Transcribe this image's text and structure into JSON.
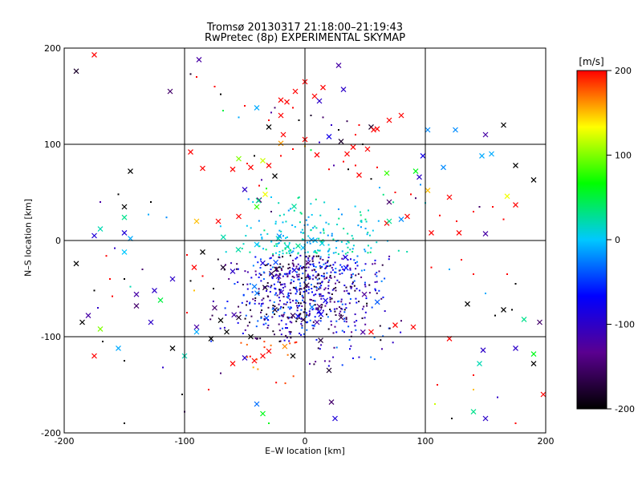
{
  "chart_data": {
    "type": "scatter",
    "title": "Tromsø 20130317 21:18:00–21:19:43",
    "subtitle": "RwPretec (8p) EXPERIMENTAL SKYMAP",
    "xlabel": "E–W location [km]",
    "ylabel": "N–S location [km]",
    "xlim": [
      -200,
      200
    ],
    "ylim": [
      -200,
      200
    ],
    "xticks": [
      -200,
      -100,
      0,
      100,
      200
    ],
    "yticks": [
      -200,
      -100,
      0,
      100,
      200
    ],
    "grid": true,
    "colorbar": {
      "unit": "[m/s]",
      "range": [
        -200,
        200
      ],
      "ticks": [
        -200,
        -100,
        0,
        100,
        200
      ],
      "colormap": [
        "#000000",
        "#5a0090",
        "#0000ff",
        "#00c8ff",
        "#00ff00",
        "#ffff00",
        "#ff0000"
      ]
    },
    "series": [
      {
        "marker": "x",
        "points": [
          [
            -190,
            176,
            -180
          ],
          [
            -175,
            193,
            200
          ],
          [
            -112,
            155,
            -150
          ],
          [
            -88,
            188,
            -120
          ],
          [
            -20,
            146,
            200
          ],
          [
            -15,
            144,
            200
          ],
          [
            -8,
            155,
            200
          ],
          [
            0,
            165,
            200
          ],
          [
            8,
            150,
            200
          ],
          [
            12,
            145,
            -100
          ],
          [
            15,
            159,
            200
          ],
          [
            32,
            157,
            -100
          ],
          [
            28,
            182,
            -120
          ],
          [
            55,
            118,
            -180
          ],
          [
            57,
            115,
            200
          ],
          [
            70,
            125,
            200
          ],
          [
            80,
            130,
            200
          ],
          [
            102,
            115,
            -20
          ],
          [
            125,
            115,
            -20
          ],
          [
            150,
            110,
            -120
          ],
          [
            165,
            120,
            -200
          ],
          [
            -40,
            138,
            -10
          ],
          [
            -20,
            130,
            200
          ],
          [
            -30,
            118,
            -200
          ],
          [
            -18,
            110,
            200
          ],
          [
            0,
            105,
            200
          ],
          [
            20,
            108,
            -80
          ],
          [
            30,
            103,
            -180
          ],
          [
            40,
            97,
            200
          ],
          [
            -95,
            92,
            200
          ],
          [
            -85,
            75,
            200
          ],
          [
            -55,
            85,
            100
          ],
          [
            -60,
            74,
            200
          ],
          [
            -45,
            76,
            200
          ],
          [
            -30,
            78,
            200
          ],
          [
            -25,
            67,
            -200
          ],
          [
            -35,
            83,
            120
          ],
          [
            -145,
            72,
            -200
          ],
          [
            -50,
            53,
            -100
          ],
          [
            -33,
            48,
            130
          ],
          [
            -38,
            42,
            -150
          ],
          [
            -20,
            101,
            160
          ],
          [
            10,
            89,
            200
          ],
          [
            35,
            90,
            200
          ],
          [
            45,
            68,
            200
          ],
          [
            68,
            70,
            80
          ],
          [
            92,
            72,
            60
          ],
          [
            98,
            88,
            -80
          ],
          [
            95,
            66,
            -100
          ],
          [
            115,
            76,
            -20
          ],
          [
            147,
            88,
            -10
          ],
          [
            155,
            90,
            -10
          ],
          [
            175,
            78,
            -200
          ],
          [
            190,
            63,
            -200
          ],
          [
            60,
            116,
            200
          ],
          [
            52,
            95,
            200
          ],
          [
            120,
            45,
            200
          ],
          [
            102,
            52,
            150
          ],
          [
            168,
            46,
            130
          ],
          [
            175,
            37,
            200
          ],
          [
            -150,
            35,
            -200
          ],
          [
            -150,
            24,
            30
          ],
          [
            -170,
            12,
            20
          ],
          [
            -150,
            8,
            -90
          ],
          [
            -175,
            5,
            -90
          ],
          [
            -145,
            2,
            -10
          ],
          [
            -90,
            20,
            150
          ],
          [
            -72,
            20,
            200
          ],
          [
            -55,
            25,
            200
          ],
          [
            -40,
            35,
            80
          ],
          [
            70,
            40,
            -150
          ],
          [
            68,
            18,
            200
          ],
          [
            80,
            22,
            -20
          ],
          [
            85,
            25,
            200
          ],
          [
            70,
            20,
            30
          ],
          [
            105,
            8,
            200
          ],
          [
            128,
            8,
            200
          ],
          [
            150,
            7,
            -120
          ],
          [
            -190,
            -24,
            -200
          ],
          [
            -150,
            -12,
            0
          ],
          [
            -110,
            -40,
            -100
          ],
          [
            -92,
            -28,
            200
          ],
          [
            -85,
            -12,
            -200
          ],
          [
            -68,
            -28,
            -180
          ],
          [
            -60,
            -32,
            -100
          ],
          [
            -140,
            -56,
            -120
          ],
          [
            -125,
            -52,
            -100
          ],
          [
            -120,
            -62,
            50
          ],
          [
            -140,
            -68,
            -150
          ],
          [
            -128,
            -85,
            -100
          ],
          [
            -180,
            -78,
            -120
          ],
          [
            -170,
            -92,
            100
          ],
          [
            -155,
            -112,
            -10
          ],
          [
            -175,
            -120,
            200
          ],
          [
            -110,
            -112,
            -200
          ],
          [
            -100,
            -120,
            20
          ],
          [
            -90,
            -90,
            -120
          ],
          [
            -75,
            -70,
            -150
          ],
          [
            -70,
            -83,
            -200
          ],
          [
            -65,
            -95,
            -200
          ],
          [
            -78,
            -102,
            -200
          ],
          [
            -55,
            -80,
            -180
          ],
          [
            -45,
            -100,
            -200
          ],
          [
            -30,
            -115,
            200
          ],
          [
            -35,
            -120,
            200
          ],
          [
            -42,
            -125,
            200
          ],
          [
            -25,
            -72,
            -180
          ],
          [
            -10,
            -78,
            -160
          ],
          [
            10,
            -85,
            -120
          ],
          [
            30,
            -80,
            -160
          ],
          [
            55,
            -95,
            200
          ],
          [
            75,
            -88,
            200
          ],
          [
            90,
            -90,
            200
          ],
          [
            135,
            -66,
            -200
          ],
          [
            165,
            -72,
            -200
          ],
          [
            182,
            -82,
            30
          ],
          [
            195,
            -85,
            -150
          ],
          [
            175,
            -112,
            -100
          ],
          [
            190,
            -118,
            60
          ],
          [
            190,
            -128,
            -200
          ],
          [
            198,
            -160,
            200
          ],
          [
            120,
            -102,
            200
          ],
          [
            148,
            -114,
            -100
          ],
          [
            145,
            -128,
            20
          ],
          [
            -90,
            -95,
            -10
          ],
          [
            -60,
            -128,
            200
          ],
          [
            -40,
            -170,
            -30
          ],
          [
            -35,
            -180,
            60
          ],
          [
            -10,
            -120,
            -200
          ],
          [
            20,
            -135,
            -180
          ],
          [
            22,
            -168,
            -150
          ],
          [
            25,
            -185,
            -90
          ],
          [
            140,
            -178,
            30
          ],
          [
            150,
            -185,
            -100
          ],
          [
            -185,
            -85,
            -200
          ],
          [
            -50,
            -122,
            -100
          ]
        ]
      },
      {
        "marker": "dot",
        "points": [
          [
            -90,
            170,
            200
          ],
          [
            -95,
            173,
            -180
          ],
          [
            -75,
            160,
            200
          ],
          [
            -70,
            152,
            -200
          ],
          [
            -68,
            135,
            50
          ],
          [
            -55,
            128,
            -10
          ],
          [
            -50,
            140,
            200
          ],
          [
            -30,
            125,
            200
          ],
          [
            -28,
            133,
            -120
          ],
          [
            -25,
            138,
            -150
          ],
          [
            -10,
            138,
            200
          ],
          [
            -5,
            125,
            -200
          ],
          [
            5,
            130,
            -180
          ],
          [
            15,
            128,
            -150
          ],
          [
            22,
            120,
            -100
          ],
          [
            28,
            115,
            -200
          ],
          [
            35,
            124,
            -160
          ],
          [
            42,
            110,
            200
          ],
          [
            45,
            120,
            200
          ],
          [
            48,
            100,
            -200
          ],
          [
            12,
            102,
            -100
          ],
          [
            5,
            94,
            50
          ],
          [
            0,
            98,
            150
          ],
          [
            -10,
            95,
            200
          ],
          [
            -20,
            88,
            200
          ],
          [
            -42,
            88,
            -200
          ],
          [
            -48,
            80,
            200
          ],
          [
            -36,
            63,
            -120
          ],
          [
            -38,
            57,
            200
          ],
          [
            -32,
            54,
            70
          ],
          [
            -28,
            45,
            0
          ],
          [
            -28,
            30,
            -150
          ],
          [
            20,
            74,
            200
          ],
          [
            24,
            78,
            -120
          ],
          [
            32,
            82,
            200
          ],
          [
            36,
            74,
            -200
          ],
          [
            42,
            78,
            200
          ],
          [
            60,
            76,
            200
          ],
          [
            55,
            64,
            -200
          ],
          [
            62,
            55,
            -10
          ],
          [
            75,
            50,
            200
          ],
          [
            88,
            48,
            200
          ],
          [
            92,
            44,
            -150
          ],
          [
            96,
            58,
            -20
          ],
          [
            100,
            39,
            10
          ],
          [
            112,
            26,
            200
          ],
          [
            126,
            20,
            200
          ],
          [
            140,
            30,
            200
          ],
          [
            145,
            35,
            -150
          ],
          [
            156,
            35,
            200
          ],
          [
            165,
            22,
            200
          ],
          [
            -155,
            48,
            -200
          ],
          [
            -170,
            40,
            -120
          ],
          [
            -128,
            40,
            -200
          ],
          [
            -130,
            27,
            -10
          ],
          [
            -115,
            24,
            -20
          ],
          [
            -158,
            -8,
            -100
          ],
          [
            -165,
            -16,
            200
          ],
          [
            -98,
            -15,
            200
          ],
          [
            -95,
            -42,
            -200
          ],
          [
            -150,
            -40,
            -200
          ],
          [
            -135,
            -30,
            -150
          ],
          [
            -162,
            -40,
            200
          ],
          [
            -175,
            -52,
            -200
          ],
          [
            -160,
            -58,
            200
          ],
          [
            -145,
            -48,
            20
          ],
          [
            -172,
            -70,
            -100
          ],
          [
            -168,
            -105,
            -200
          ],
          [
            -150,
            -125,
            -200
          ],
          [
            -118,
            -132,
            -100
          ],
          [
            -102,
            -160,
            -200
          ],
          [
            -80,
            -155,
            200
          ],
          [
            -70,
            -138,
            -150
          ],
          [
            -98,
            -75,
            200
          ],
          [
            -92,
            -52,
            150
          ],
          [
            -85,
            -37,
            200
          ],
          [
            -76,
            -50,
            -200
          ],
          [
            105,
            -28,
            200
          ],
          [
            120,
            -30,
            -10
          ],
          [
            130,
            -20,
            200
          ],
          [
            140,
            -35,
            200
          ],
          [
            150,
            -55,
            -10
          ],
          [
            168,
            -35,
            200
          ],
          [
            175,
            -45,
            -200
          ],
          [
            158,
            -78,
            -200
          ],
          [
            172,
            -72,
            -200
          ],
          [
            140,
            -140,
            200
          ],
          [
            140,
            -155,
            150
          ],
          [
            160,
            -163,
            -100
          ],
          [
            110,
            -150,
            200
          ],
          [
            108,
            -170,
            120
          ],
          [
            122,
            -185,
            -200
          ],
          [
            175,
            -190,
            200
          ],
          [
            -150,
            -190,
            -200
          ],
          [
            -100,
            -178,
            -150
          ],
          [
            -30,
            -190,
            60
          ]
        ]
      }
    ]
  }
}
